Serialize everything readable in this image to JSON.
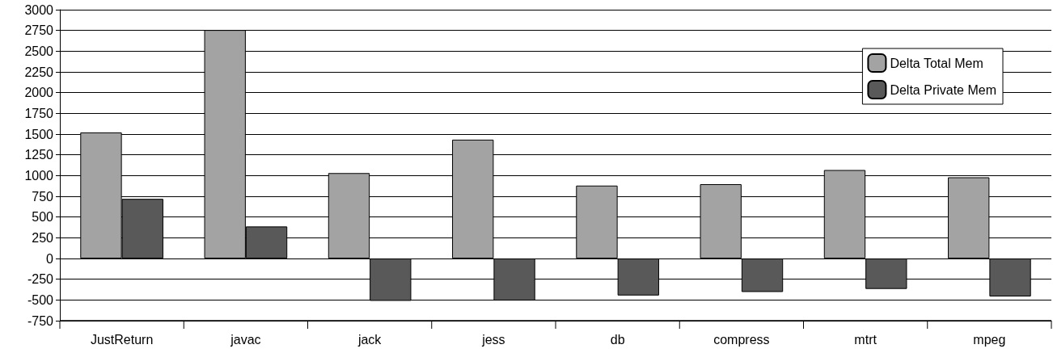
{
  "chart_data": {
    "type": "bar",
    "categories": [
      "JustReturn",
      "javac",
      "jack",
      "jess",
      "db",
      "compress",
      "mtrt",
      "mpeg"
    ],
    "series": [
      {
        "name": "Delta Total Mem",
        "color": "#a3a3a3",
        "values": [
          1520,
          2755,
          1030,
          1433,
          879,
          896,
          1067,
          979
        ]
      },
      {
        "name": "Delta Private Mem",
        "color": "#595959",
        "values": [
          719,
          386,
          -511,
          -507,
          -446,
          -404,
          -367,
          -458
        ]
      }
    ],
    "ylim": [
      -750,
      3000
    ],
    "yticks": [
      -750,
      -500,
      -250,
      0,
      250,
      500,
      750,
      1000,
      1250,
      1500,
      1750,
      2000,
      2250,
      2500,
      2750,
      3000
    ],
    "grid": "y",
    "legend": "top right"
  }
}
